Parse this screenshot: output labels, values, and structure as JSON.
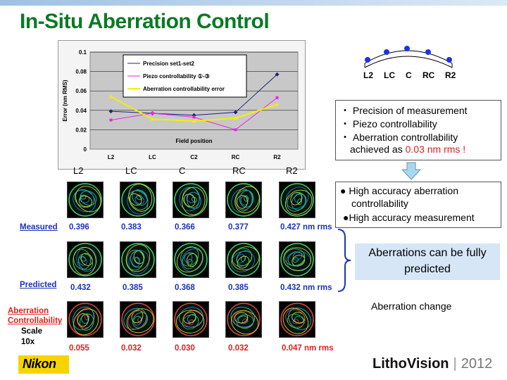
{
  "title": "In-Situ Aberration Control",
  "chart_data": {
    "type": "line",
    "categories": [
      "L2",
      "LC",
      "C2",
      "RC",
      "R2"
    ],
    "ylabel": "Error (nm RMS)",
    "xlabel": "Field position",
    "ylim": [
      0,
      0.1
    ],
    "yticks": [
      "0",
      "0.02",
      "0.04",
      "0.06",
      "0.08",
      "0.1"
    ],
    "grid": true,
    "legend_position": "top-center",
    "series": [
      {
        "name": "Precision set1-set2",
        "color": "#1a237e",
        "marker": "diamond",
        "values": [
          0.039,
          0.037,
          0.035,
          0.038,
          0.077
        ]
      },
      {
        "name": "Piezo controllability ①-③",
        "color": "#ee22ee",
        "marker": "square",
        "values": [
          0.03,
          0.037,
          0.033,
          0.02,
          0.053
        ]
      },
      {
        "name": "Aberration controllability error",
        "color": "#f4f000",
        "marker": "triangle",
        "values": [
          0.054,
          0.031,
          0.029,
          0.032,
          0.046
        ]
      }
    ]
  },
  "positions": [
    "L2",
    "LC",
    "C",
    "RC",
    "R2"
  ],
  "summary_box": {
    "line1": "・ Precision of measurement",
    "line2": "・ Piezo controllability",
    "line3": "・ Aberration controllability",
    "line4_prefix": "achieved as ",
    "line4_value": "0.03 nm rms !"
  },
  "result_box": {
    "bullet1a": "● High accuracy aberration",
    "bullet1b": "controllability",
    "bullet2": "●High accuracy measurement"
  },
  "columns": [
    "L2",
    "LC",
    "C",
    "RC",
    "R2"
  ],
  "rows": {
    "measured": {
      "label": "Measured",
      "values": [
        "0.396",
        "0.383",
        "0.366",
        "0.377",
        "0.427 nm rms"
      ]
    },
    "predicted": {
      "label": "Predicted",
      "values": [
        "0.432",
        "0.385",
        "0.368",
        "0.385",
        "0.432 nm rms"
      ]
    },
    "controllability": {
      "label_a": "Aberration",
      "label_b": "Controllability",
      "scale_a": "Scale",
      "scale_b": "10x",
      "values": [
        "0.055",
        "0.032",
        "0.030",
        "0.032",
        "0.047 nm rms"
      ]
    }
  },
  "predict_box": {
    "line1": "Aberrations can be fully",
    "line2": "predicted"
  },
  "change_label": "Aberration change",
  "logo": "Nikon",
  "footer": {
    "brand": "LithoVision",
    "separator": "|",
    "year": "2012"
  },
  "colors": {
    "title": "#0a7a24",
    "measured": "#1a33b8",
    "controllability": "#e0201e",
    "predict_box": "#d6e6f6"
  }
}
